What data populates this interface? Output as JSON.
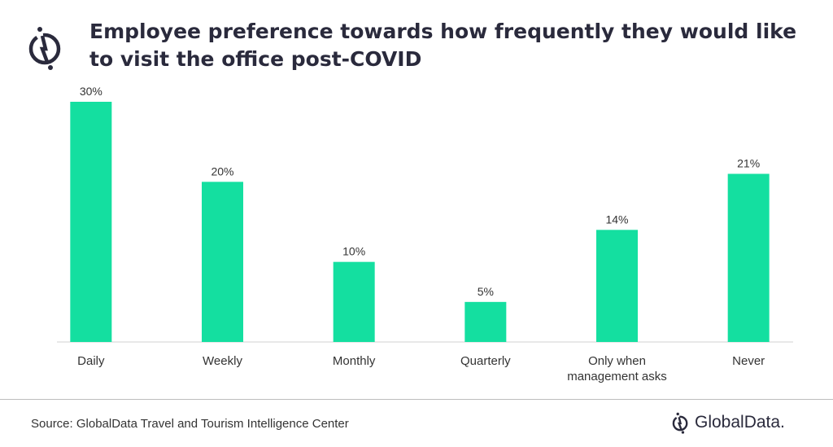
{
  "title": "Employee preference towards how frequently they would like to visit the office post-COVID",
  "source": "Source: GlobalData Travel and Tourism Intelligence Center",
  "brand": "GlobalData.",
  "colors": {
    "bar": "#14DFA0",
    "title": "#2A2A3C"
  },
  "chart_data": {
    "type": "bar",
    "title": "Employee preference towards how frequently they would like to visit the office post-COVID",
    "categories": [
      [
        "Daily"
      ],
      [
        "Weekly"
      ],
      [
        "Monthly"
      ],
      [
        "Quarterly"
      ],
      [
        "Only when",
        "management asks"
      ],
      [
        "Never"
      ]
    ],
    "values": [
      30,
      20,
      10,
      5,
      14,
      21
    ],
    "data_labels": [
      "30%",
      "20%",
      "10%",
      "5%",
      "14%",
      "21%"
    ],
    "ylim": [
      0,
      30
    ],
    "grid": false,
    "legend": "none"
  }
}
